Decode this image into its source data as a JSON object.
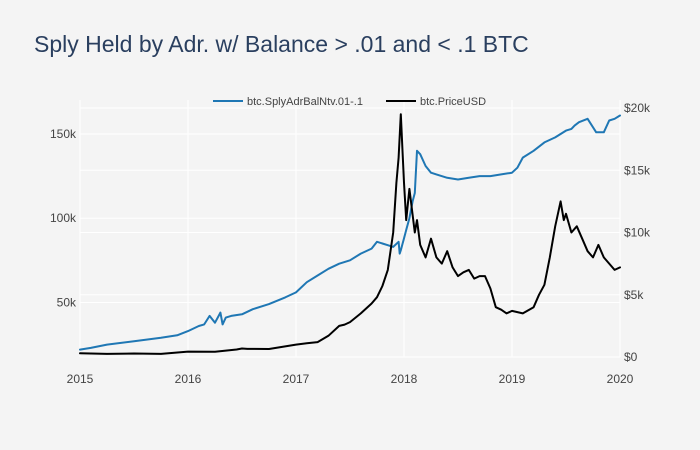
{
  "chart_data": {
    "type": "line",
    "title": "Sply Held by Adr. w/ Balance > .01 and < .1 BTC",
    "xlabel": "",
    "ylabel": "",
    "x_ticks": [
      "2015",
      "2016",
      "2017",
      "2018",
      "2019",
      "2020"
    ],
    "x_range": [
      2015.0,
      2020.0
    ],
    "y_left": {
      "range": [
        20000,
        165000
      ],
      "ticks": [
        50000,
        100000,
        150000
      ],
      "tick_labels": [
        "50k",
        "100k",
        "150k"
      ]
    },
    "y_right": {
      "range": [
        0,
        20000
      ],
      "ticks": [
        0,
        5000,
        10000,
        15000,
        20000
      ],
      "tick_labels": [
        "$0",
        "$5k",
        "$10k",
        "$15k",
        "$20k"
      ]
    },
    "legend_position": "top-center",
    "series": [
      {
        "name": "btc.SplyAdrBalNtv.01-.1",
        "axis": "left",
        "color": "#1f77b4",
        "x": [
          2015.0,
          2015.1,
          2015.25,
          2015.5,
          2015.75,
          2015.9,
          2016.0,
          2016.1,
          2016.15,
          2016.2,
          2016.25,
          2016.3,
          2016.32,
          2016.35,
          2016.4,
          2016.5,
          2016.6,
          2016.75,
          2016.9,
          2017.0,
          2017.1,
          2017.2,
          2017.3,
          2017.4,
          2017.5,
          2017.6,
          2017.7,
          2017.75,
          2017.8,
          2017.85,
          2017.9,
          2017.95,
          2017.96,
          2017.97,
          2018.0,
          2018.02,
          2018.05,
          2018.08,
          2018.1,
          2018.12,
          2018.15,
          2018.2,
          2018.25,
          2018.3,
          2018.4,
          2018.5,
          2018.6,
          2018.7,
          2018.8,
          2018.9,
          2019.0,
          2019.05,
          2019.1,
          2019.2,
          2019.3,
          2019.4,
          2019.5,
          2019.55,
          2019.58,
          2019.62,
          2019.7,
          2019.78,
          2019.85,
          2019.9,
          2019.95,
          2020.0
        ],
        "values": [
          22000,
          23000,
          25000,
          27000,
          29000,
          30500,
          33000,
          36000,
          37000,
          42000,
          38000,
          44000,
          37000,
          41000,
          42000,
          43000,
          46000,
          49000,
          53000,
          56000,
          62000,
          66000,
          70000,
          73000,
          75000,
          79000,
          82000,
          86000,
          85000,
          84000,
          83000,
          86000,
          79000,
          81000,
          88000,
          93000,
          100000,
          110000,
          115000,
          140000,
          138000,
          131000,
          127000,
          126000,
          124000,
          123000,
          124000,
          125000,
          125000,
          126000,
          127000,
          130000,
          136000,
          140000,
          145000,
          148000,
          152000,
          153000,
          155000,
          157000,
          159000,
          151000,
          151000,
          158000,
          159000,
          161000
        ]
      },
      {
        "name": "btc.PriceUSD",
        "axis": "right",
        "color": "#000000",
        "x": [
          2015.0,
          2015.25,
          2015.5,
          2015.75,
          2016.0,
          2016.25,
          2016.45,
          2016.5,
          2016.55,
          2016.75,
          2017.0,
          2017.1,
          2017.2,
          2017.3,
          2017.4,
          2017.45,
          2017.5,
          2017.6,
          2017.7,
          2017.75,
          2017.8,
          2017.85,
          2017.9,
          2017.93,
          2017.95,
          2017.97,
          2018.0,
          2018.02,
          2018.05,
          2018.1,
          2018.12,
          2018.15,
          2018.2,
          2018.25,
          2018.3,
          2018.35,
          2018.4,
          2018.45,
          2018.5,
          2018.55,
          2018.6,
          2018.65,
          2018.7,
          2018.75,
          2018.8,
          2018.85,
          2018.9,
          2018.95,
          2019.0,
          2019.1,
          2019.2,
          2019.25,
          2019.3,
          2019.35,
          2019.4,
          2019.45,
          2019.48,
          2019.5,
          2019.55,
          2019.6,
          2019.65,
          2019.7,
          2019.75,
          2019.8,
          2019.85,
          2019.9,
          2019.95,
          2020.0
        ],
        "values": [
          300,
          250,
          280,
          250,
          430,
          420,
          600,
          680,
          650,
          640,
          1000,
          1100,
          1200,
          1700,
          2500,
          2600,
          2800,
          3500,
          4300,
          4800,
          5700,
          7000,
          10000,
          14000,
          16000,
          19500,
          14000,
          11000,
          13500,
          10000,
          11000,
          9000,
          8000,
          9500,
          8000,
          7500,
          8500,
          7200,
          6500,
          6800,
          7000,
          6300,
          6500,
          6500,
          5500,
          4000,
          3800,
          3500,
          3700,
          3500,
          4000,
          5000,
          5800,
          8000,
          10500,
          12500,
          11000,
          11500,
          10000,
          10500,
          9500,
          8500,
          8000,
          9000,
          8000,
          7500,
          7000,
          7200
        ]
      }
    ]
  }
}
